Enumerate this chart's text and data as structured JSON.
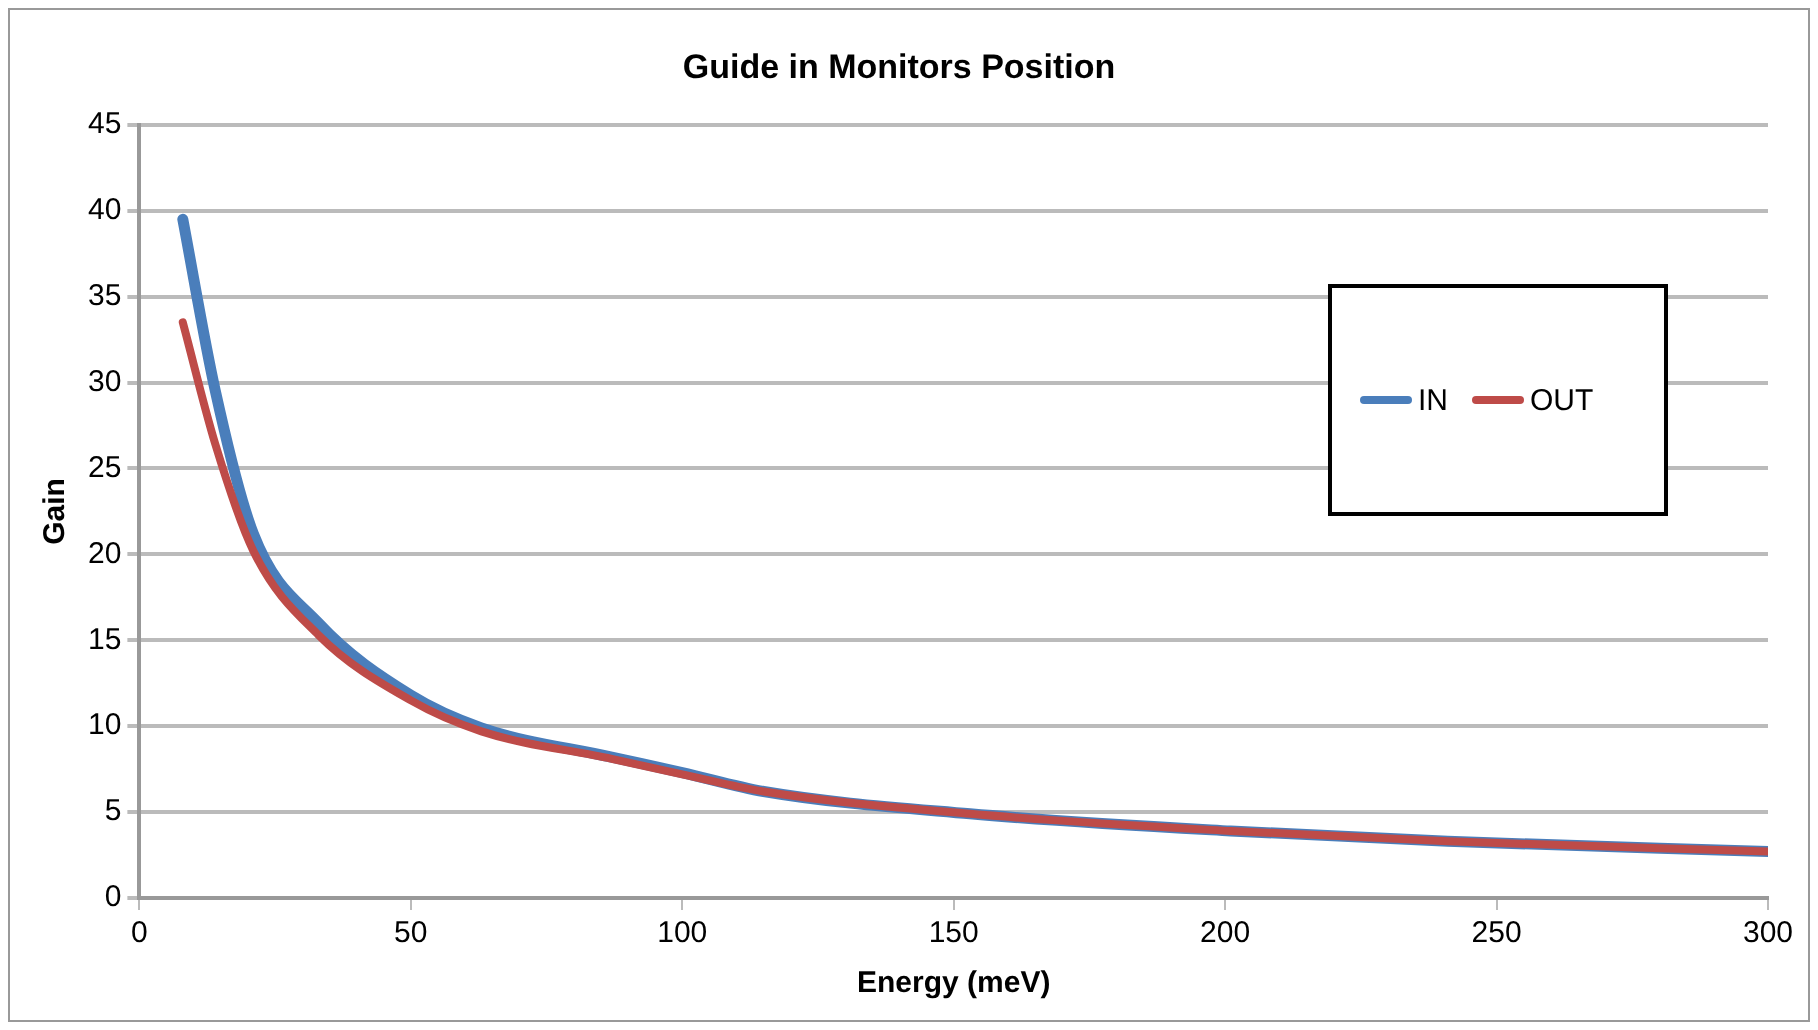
{
  "chart_data": {
    "type": "line",
    "title": "Guide in Monitors Position",
    "xlabel": "Energy (meV)",
    "ylabel": "Gain",
    "xlim": [
      0,
      300
    ],
    "xticks": [
      0,
      50,
      100,
      150,
      200,
      250,
      300
    ],
    "ylim": [
      0,
      45
    ],
    "yticks": [
      0,
      5,
      10,
      15,
      20,
      25,
      30,
      35,
      40,
      45
    ],
    "grid": "y",
    "legend": "right",
    "marker": "none",
    "line_style": "solid",
    "series": [
      {
        "name": "IN",
        "color": "#4a7ebb",
        "x": [
          8,
          14,
          21,
          33,
          50,
          63,
          87,
          100,
          115,
          153,
          201,
          241,
          300
        ],
        "values": [
          39.5,
          29.5,
          21.2,
          16,
          11.8,
          9.9,
          8.2,
          7.3,
          6.2,
          4.9,
          3.9,
          3.3,
          2.7
        ]
      },
      {
        "name": "OUT",
        "color": "#be4b48",
        "x": [
          8,
          14,
          21,
          33,
          50,
          63,
          87,
          100,
          115,
          153,
          201,
          241,
          300
        ],
        "values": [
          33.5,
          26.4,
          20.2,
          15.3,
          11.5,
          9.7,
          8.1,
          7.2,
          6.2,
          4.9,
          3.9,
          3.3,
          2.7
        ]
      }
    ]
  }
}
